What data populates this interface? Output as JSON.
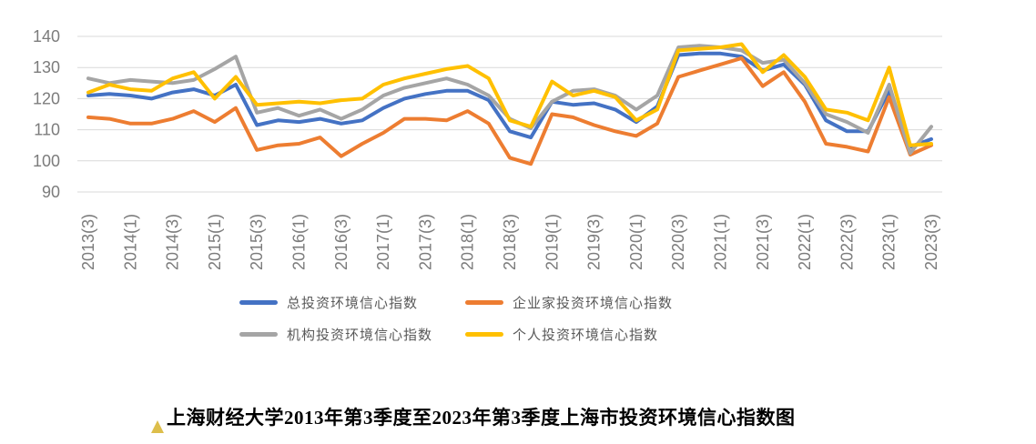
{
  "chart_data": {
    "type": "line",
    "title": "上海财经大学2013年第3季度至2023年第3季度上海市投资环境信心指数图",
    "ylim": [
      90,
      140
    ],
    "y_ticks": [
      140,
      130,
      120,
      110,
      100,
      90
    ],
    "grid": "horizontal",
    "legend_position": "bottom",
    "x": [
      "2013(3)",
      "2013(4)",
      "2014(1)",
      "2014(2)",
      "2014(3)",
      "2014(4)",
      "2015(1)",
      "2015(2)",
      "2015(3)",
      "2015(4)",
      "2016(1)",
      "2016(2)",
      "2016(3)",
      "2016(4)",
      "2017(1)",
      "2017(2)",
      "2017(3)",
      "2017(4)",
      "2018(1)",
      "2018(2)",
      "2018(3)",
      "2018(4)",
      "2019(1)",
      "2019(2)",
      "2019(3)",
      "2019(4)",
      "2020(1)",
      "2020(2)",
      "2020(3)",
      "2020(4)",
      "2021(1)",
      "2021(2)",
      "2021(3)",
      "2021(4)",
      "2022(1)",
      "2022(2)",
      "2022(3)",
      "2022(4)",
      "2023(1)",
      "2023(2)",
      "2023(3)"
    ],
    "x_tick_labels": [
      "2013(3)",
      "2014(1)",
      "2014(3)",
      "2015(1)",
      "2015(3)",
      "2016(1)",
      "2016(3)",
      "2017(1)",
      "2017(3)",
      "2018(1)",
      "2018(3)",
      "2019(1)",
      "2019(3)",
      "2020(1)",
      "2020(3)",
      "2021(1)",
      "2021(3)",
      "2022(1)",
      "2022(3)",
      "2023(1)",
      "2023(3)"
    ],
    "series": [
      {
        "id": "total",
        "name": "总投资环境信心指数",
        "color": "#4472C4",
        "values": [
          121,
          121.5,
          121,
          120,
          122,
          123,
          121,
          124.5,
          111.5,
          113,
          112.5,
          113.5,
          112,
          113,
          117,
          120,
          121.5,
          122.5,
          122.5,
          119.5,
          109.5,
          107.5,
          119,
          118,
          118.5,
          116.5,
          112.5,
          117.5,
          134,
          134.5,
          134.5,
          133.5,
          129,
          131,
          124.5,
          113,
          109.5,
          109.5,
          122.5,
          104.5,
          107
        ]
      },
      {
        "id": "entrepreneur",
        "name": "企业家投资环境信心指数",
        "color": "#ED7D31",
        "values": [
          114,
          113.5,
          112,
          112,
          113.5,
          116,
          112.5,
          117,
          103.5,
          105,
          105.5,
          107.5,
          101.5,
          105.5,
          109,
          113.5,
          113.5,
          113,
          116,
          112,
          101,
          99,
          115,
          114,
          111.5,
          109.5,
          108,
          112,
          127,
          129,
          131,
          133,
          124,
          128.5,
          119,
          105.5,
          104.5,
          103,
          120.5,
          102,
          105
        ]
      },
      {
        "id": "institution",
        "name": "机构投资环境信心指数",
        "color": "#A5A5A5",
        "values": [
          126.5,
          125,
          126,
          125.5,
          125,
          126,
          129.5,
          133.5,
          115.5,
          117,
          114.5,
          116.5,
          113.5,
          116.5,
          121,
          123.5,
          125,
          126.5,
          124.5,
          121,
          113.5,
          110.5,
          119,
          122.5,
          123,
          121,
          116.5,
          121,
          136.5,
          137,
          136.5,
          135.5,
          131.5,
          132.5,
          125,
          115,
          112.5,
          109,
          124.5,
          102.5,
          111
        ]
      },
      {
        "id": "individual",
        "name": "个人投资环境信心指数",
        "color": "#FFC000",
        "values": [
          122,
          124.5,
          123,
          122.5,
          126.5,
          128.5,
          120,
          127,
          118,
          118.5,
          119,
          118.5,
          119.5,
          120,
          124.5,
          126.5,
          128,
          129.5,
          130.5,
          126.5,
          113,
          111,
          125.5,
          121,
          122.5,
          120.5,
          113,
          116.5,
          135.5,
          136,
          136.5,
          137.5,
          128.5,
          134,
          127,
          116.5,
          115.5,
          113,
          130,
          105,
          105.5
        ]
      }
    ],
    "style": {
      "grid_color": "#d9d9d9",
      "axis_label_color": "#7c7c7c",
      "line_width": 4
    },
    "title_marker": "triangle"
  }
}
